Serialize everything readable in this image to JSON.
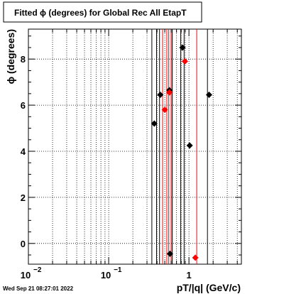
{
  "chart_data": {
    "type": "scatter",
    "title": "Fitted ϕ (degrees) for Global Rec All EtapT",
    "xlabel": "pT/|q| (GeV/c)",
    "ylabel": "ϕ (degrees)",
    "x_scale": "log",
    "xlim": [
      0.01,
      4.5
    ],
    "ylim": [
      -0.9,
      9.3
    ],
    "grid": true,
    "x_ticks": [
      {
        "value": 0.01,
        "base": "10",
        "exp": "−2"
      },
      {
        "value": 0.1,
        "base": "10",
        "exp": "−1"
      },
      {
        "value": 1,
        "base": "1",
        "exp": ""
      }
    ],
    "y_ticks": [
      {
        "value": 0,
        "label": "0"
      },
      {
        "value": 2,
        "label": "2"
      },
      {
        "value": 4,
        "label": "4"
      },
      {
        "value": 6,
        "label": "6"
      },
      {
        "value": 8,
        "label": "8"
      }
    ],
    "series": [
      {
        "color": "#000000",
        "points": [
          {
            "x": 0.37,
            "y": 5.2
          },
          {
            "x": 0.44,
            "y": 6.45
          },
          {
            "x": 0.57,
            "y": 6.65
          },
          {
            "x": 0.58,
            "y": -0.45
          },
          {
            "x": 0.83,
            "y": 8.5
          },
          {
            "x": 1.02,
            "y": 4.25
          },
          {
            "x": 1.78,
            "y": 6.45
          }
        ],
        "vlines": [
          0.345,
          0.395,
          0.43,
          0.62,
          0.79,
          0.87,
          1.7
        ]
      },
      {
        "color": "#ff0000",
        "points": [
          {
            "x": 0.5,
            "y": 5.8
          },
          {
            "x": 0.57,
            "y": 6.55
          },
          {
            "x": 0.89,
            "y": 7.9
          },
          {
            "x": 1.2,
            "y": -0.62
          }
        ],
        "vlines": [
          0.47,
          0.53,
          0.56,
          0.6,
          1.25
        ]
      }
    ]
  },
  "footer": {
    "timestamp": "Wed Sep 21 08:27:01 2022"
  }
}
